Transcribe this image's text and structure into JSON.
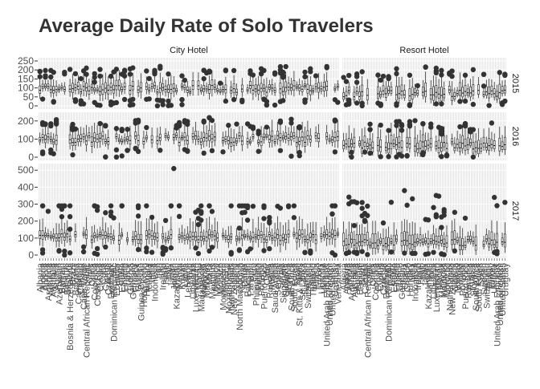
{
  "chart_data": {
    "type": "boxplot",
    "title": "Average Daily Rate of Solo Travelers",
    "xlabel": "",
    "ylabel": "",
    "facet_columns": [
      "City Hotel",
      "Resort Hotel"
    ],
    "facet_rows": [
      "2015",
      "2016",
      "2017"
    ],
    "row_ylim": {
      "2015": [
        0,
        250
      ],
      "2016": [
        0,
        230
      ],
      "2017": [
        0,
        520
      ]
    },
    "row_yticks": {
      "2015": [
        0,
        50,
        100,
        150,
        200,
        250
      ],
      "2016": [
        0,
        100,
        200
      ],
      "2017": [
        0,
        100,
        200,
        300,
        400,
        500
      ]
    },
    "grid": true,
    "panel_background": "#ebebeb",
    "box_fill": "#ffffff",
    "box_line": "#1a1a1a",
    "outlier_color": "#333333",
    "column_categories": {
      "City Hotel": [
        "Albania",
        "Algeria",
        "Angola",
        "Argentina",
        "Armenia",
        "Australia",
        "Austria",
        "Azerbaijan",
        "Bahrain",
        "Belarus",
        "Belgium",
        "Bosnia & Herzegovina",
        "Brazil",
        "Bulgaria",
        "Cameroon",
        "Canada",
        "Cape Verde",
        "Central African Republic",
        "Chile",
        "China",
        "Colombia",
        "Costa Rica",
        "Croatia",
        "Cuba",
        "Cyprus",
        "Czechia",
        "Denmark",
        "Dominican Republic",
        "Ecuador",
        "Egypt",
        "Estonia",
        "Finland",
        "France",
        "Georgia",
        "Germany",
        "Greece",
        "Guinea",
        "Guinea-Bissau",
        "Hong Kong",
        "Hungary",
        "Iceland",
        "India",
        "Indonesia",
        "Iran",
        "Iraq",
        "Ireland",
        "Israel",
        "Italy",
        "Japan",
        "Jordan",
        "Kazakhstan",
        "Kenya",
        "Kuwait",
        "Latvia",
        "Lebanon",
        "Libya",
        "Lithuania",
        "Luxembourg",
        "Macau",
        "Madagascar",
        "Malaysia",
        "Maldives",
        "Malta",
        "Mauritius",
        "Mexico",
        "Moldova",
        "Monaco",
        "Montenegro",
        "Morocco",
        "Mozambique",
        "Netherlands",
        "New Zealand",
        "Nigeria",
        "North Macedonia",
        "Norway",
        "Oman",
        "Pakistan",
        "Panama",
        "Peru",
        "Philippines",
        "Poland",
        "Portugal",
        "Puerto Rico",
        "Qatar",
        "Romania",
        "Russia",
        "Saudi Arabia",
        "Senegal",
        "Serbia",
        "Singapore",
        "Slovakia",
        "Slovenia",
        "South Africa",
        "South Korea",
        "Spain",
        "St. Kitts & Nevis",
        "Sri Lanka",
        "Sweden",
        "Switzerland",
        "Taiwan",
        "Thailand",
        "Tunisia",
        "Turkey",
        "Uganda",
        "Ukraine",
        "United Arab Emirates",
        "United Kingdom",
        "United States",
        "Uruguay",
        "Venezuela"
      ],
      "Resort Hotel": [
        "Algeria",
        "Andorra",
        "Angola",
        "Argentina",
        "Australia",
        "Austria",
        "Belgium",
        "Brazil",
        "Canada",
        "Central African Republic",
        "Chile",
        "China",
        "Colombia",
        "Croatia",
        "Cyprus",
        "Czechia",
        "Denmark",
        "Dominican Republic",
        "Egypt",
        "Estonia",
        "Finland",
        "France",
        "Germany",
        "Ghana",
        "Greece",
        "Hungary",
        "India",
        "Indonesia",
        "Ireland",
        "Israel",
        "Italy",
        "Japan",
        "Kazakhstan",
        "Latvia",
        "Lithuania",
        "Luxembourg",
        "Macau",
        "Malaysia",
        "Maldives",
        "Morocco",
        "Netherlands",
        "New Zealand",
        "Nigeria",
        "Norway",
        "Poland",
        "Portugal",
        "Puerto Rico",
        "Romania",
        "Russia",
        "Slovakia",
        "South Africa",
        "South Korea",
        "Spain",
        "Sweden",
        "Switzerland",
        "Taiwan",
        "Turkey",
        "Ukraine",
        "United Arab Emirates",
        "United Kingdom",
        "United States",
        "Uruguay"
      ]
    },
    "x_tick_labels": {
      "City Hotel": [
        "Albania",
        "Algeria",
        "Angola",
        "Argentina",
        "Armenia",
        "Australia",
        "Austria",
        "Azerbaijan",
        "Bahrain",
        "Belarus",
        "Belgium",
        "Bosnia & Herzegovina",
        "Brazil",
        "Bulgaria",
        "Cameroon",
        "Canada",
        "Cape Verde",
        "Central African Republic",
        "Chile",
        "China",
        "Colombia",
        "Costa Rica",
        "Croatia",
        "Cuba",
        "Cyprus",
        "Czechia",
        "Denmark",
        "Dominican Republic",
        "Ecuador",
        "Egypt",
        "Estonia",
        "Finland",
        "France",
        "Georgia",
        "Germany",
        "Greece",
        "Guinea",
        "Guinea-Bissau",
        "Hong Kong",
        "Hungary",
        "Iceland",
        "India",
        "Indonesia",
        "Iran",
        "Iraq",
        "Ireland",
        "Israel",
        "Italy",
        "Japan",
        "Jordan",
        "Kazakhstan",
        "Kenya",
        "Kuwait",
        "Latvia",
        "Lebanon",
        "Libya",
        "Lithuania",
        "Luxembourg",
        "Macau",
        "Madagascar",
        "Malaysia",
        "Maldives",
        "Malta",
        "Mauritius",
        "Mexico",
        "Moldova",
        "Monaco",
        "Montenegro",
        "Morocco",
        "Mozambique",
        "Netherlands",
        "New Zealand",
        "Nigeria",
        "North Macedonia",
        "Norway",
        "Oman",
        "Pakistan",
        "Panama",
        "Peru",
        "Philippines",
        "Poland",
        "Portugal",
        "Puerto Rico",
        "Qatar",
        "Romania",
        "Russia",
        "Saudi Arabia",
        "Senegal",
        "Serbia",
        "Singapore",
        "Slovakia",
        "Slovenia",
        "South Africa",
        "South Korea",
        "Spain",
        "St. Kitts & Nevis",
        "Sri Lanka",
        "Sweden",
        "Switzerland",
        "Taiwan",
        "Thailand",
        "Tunisia",
        "Turkey",
        "Uganda",
        "Ukraine",
        "United Arab Emirates",
        "United Kingdom",
        "United States",
        "Uruguay",
        "Venezuela"
      ],
      "Resort Hotel": [
        "Algeria",
        "Andorra",
        "Angola",
        "Argentina",
        "Australia",
        "Austria",
        "Belgium",
        "Brazil",
        "Canada",
        "Central African Republic",
        "Chile",
        "China",
        "Colombia",
        "Croatia",
        "Cyprus",
        "Czechia",
        "Denmark",
        "Dominican Republic",
        "Egypt",
        "Estonia",
        "Finland",
        "France",
        "Germany",
        "Ghana",
        "Greece",
        "Hungary",
        "India",
        "Indonesia",
        "Ireland",
        "Israel",
        "Italy",
        "Japan",
        "Kazakhstan",
        "Latvia",
        "Lithuania",
        "Luxembourg",
        "Macau",
        "Malaysia",
        "Maldives",
        "Morocco",
        "Netherlands",
        "New Zealand",
        "Nigeria",
        "Norway",
        "Poland",
        "Portugal",
        "Puerto Rico",
        "Romania",
        "Russia",
        "Slovakia",
        "South Africa",
        "South Korea",
        "Spain",
        "Sweden",
        "Switzerland",
        "Taiwan",
        "Turkey",
        "Ukraine",
        "United Arab Emirates",
        "United Kingdom",
        "United States",
        "Uruguay"
      ]
    },
    "typical_box_stats": {
      "City Hotel": {
        "2015": {
          "q1": 80,
          "median": 95,
          "q3": 115,
          "whisker_low": 55,
          "whisker_high": 150
        },
        "2016": {
          "q1": 85,
          "median": 100,
          "q3": 120,
          "whisker_low": 60,
          "whisker_high": 160
        },
        "2017": {
          "q1": 90,
          "median": 105,
          "q3": 125,
          "whisker_low": 60,
          "whisker_high": 175
        }
      },
      "Resort Hotel": {
        "2015": {
          "q1": 50,
          "median": 70,
          "q3": 100,
          "whisker_low": 30,
          "whisker_high": 140
        },
        "2016": {
          "q1": 45,
          "median": 65,
          "q3": 95,
          "whisker_low": 25,
          "whisker_high": 140
        },
        "2017": {
          "q1": 55,
          "median": 75,
          "q3": 110,
          "whisker_low": 30,
          "whisker_high": 160
        }
      }
    },
    "max_outlier": {
      "facet_column": "City Hotel",
      "facet_row": "2017",
      "value": 510
    }
  }
}
